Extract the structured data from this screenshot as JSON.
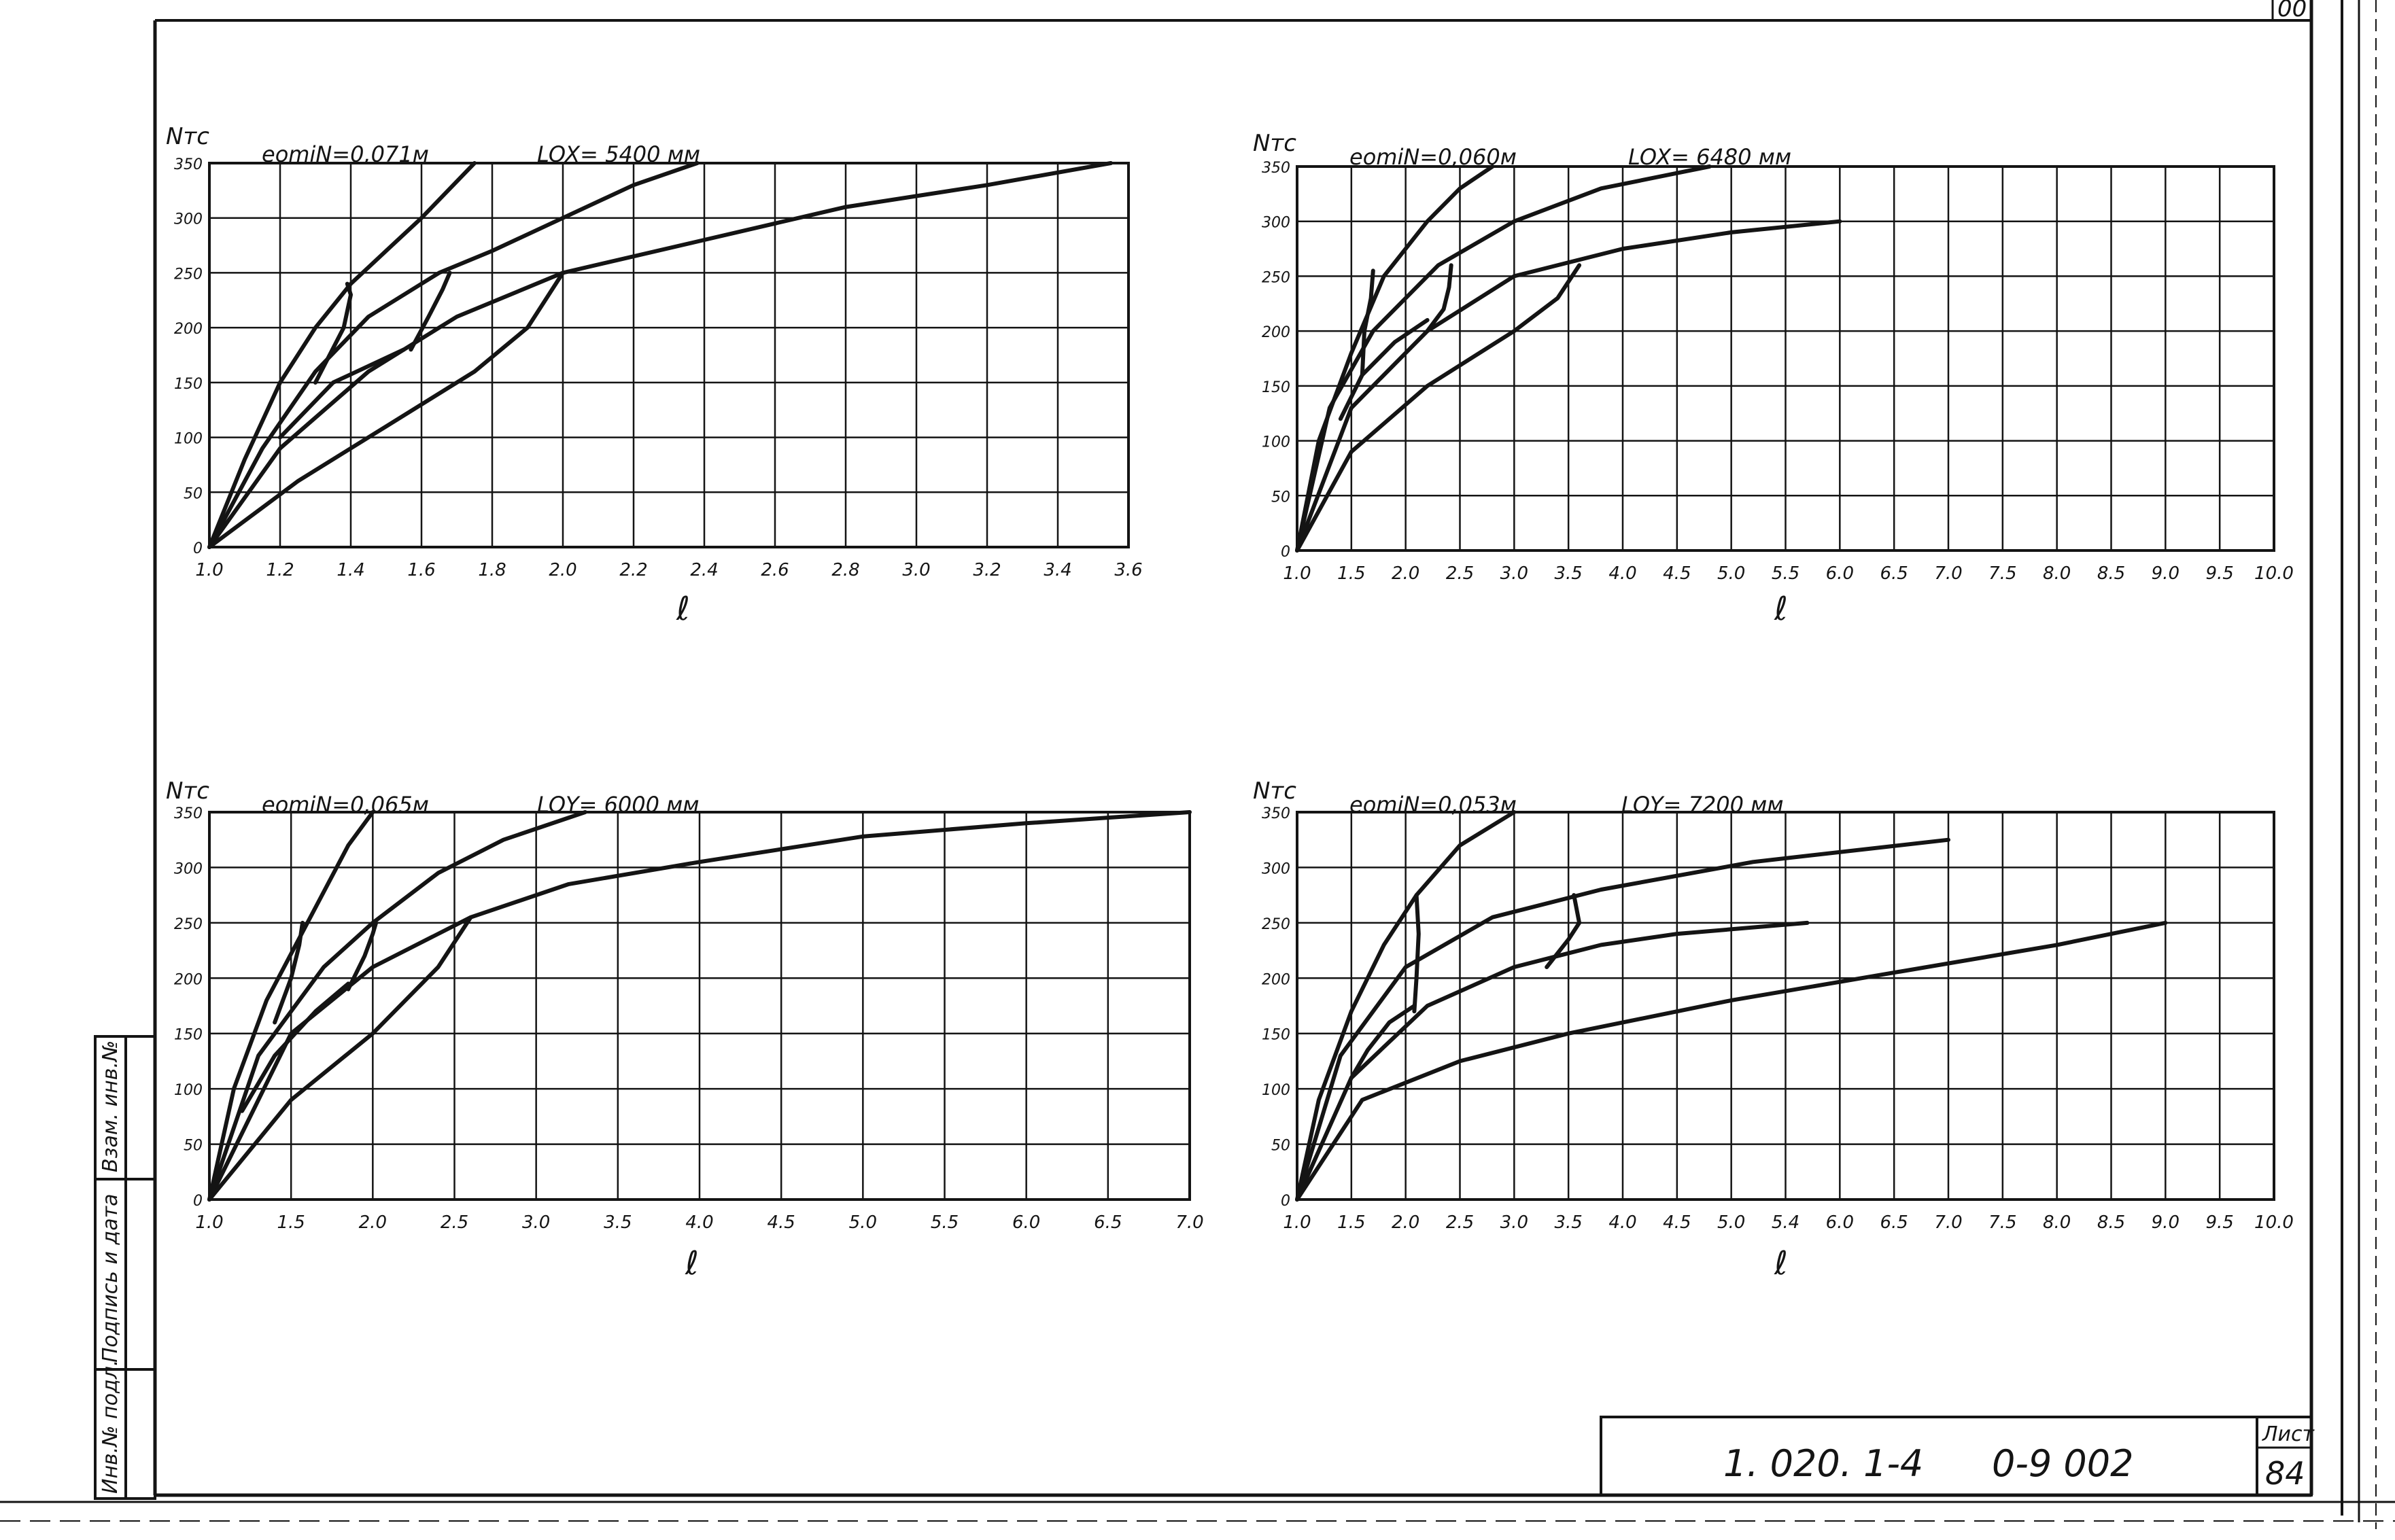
{
  "titleblock": {
    "designation": "1. 020. 1-4",
    "code": "0-9  002",
    "sheet_label": "Лист",
    "sheet_number": "84",
    "corner_fragment": "00"
  },
  "side_stamp": {
    "cells": [
      "Взам. инв.№",
      "Подпись и дата",
      "Инв.№ подл."
    ]
  },
  "chart_data": [
    {
      "type": "line",
      "title_emin": "eomiN=0,071м",
      "title_length": "LOX= 5400 мм",
      "ylabel": "Nтс",
      "xlabel": "ℓ",
      "xlim": [
        1.0,
        3.6
      ],
      "ylim": [
        0,
        350
      ],
      "x_ticks": [
        "1.0",
        "1.2",
        "1.4",
        "1.6",
        "1.8",
        "2.0",
        "2.2",
        "2.4",
        "2.6",
        "2.8",
        "3.0",
        "3.2",
        "3.4",
        "3.6"
      ],
      "y_ticks": [
        "0",
        "50",
        "100",
        "150",
        "200",
        "250",
        "300",
        "350"
      ],
      "grid": true,
      "series": [
        {
          "x": [
            1.0,
            1.1,
            1.2,
            1.3,
            1.4,
            1.5,
            1.6,
            1.75
          ],
          "y": [
            0,
            80,
            150,
            200,
            240,
            270,
            300,
            350
          ]
        },
        {
          "x": [
            1.0,
            1.15,
            1.3,
            1.45,
            1.65,
            1.8,
            2.0,
            2.2,
            2.38
          ],
          "y": [
            0,
            90,
            160,
            210,
            250,
            270,
            300,
            330,
            350
          ]
        },
        {
          "x": [
            1.0,
            1.2,
            1.45,
            1.7,
            2.0,
            2.4,
            2.8,
            3.2,
            3.55
          ],
          "y": [
            0,
            90,
            160,
            210,
            250,
            280,
            310,
            330,
            350
          ]
        },
        {
          "x": [
            1.0,
            1.25,
            1.5,
            1.75,
            1.9,
            2.0
          ],
          "y": [
            0,
            60,
            110,
            160,
            200,
            250
          ]
        },
        {
          "x": [
            1.3,
            1.38,
            1.4,
            1.39
          ],
          "y": [
            150,
            200,
            230,
            240
          ]
        },
        {
          "x": [
            1.57,
            1.62,
            1.66,
            1.68
          ],
          "y": [
            180,
            210,
            235,
            250
          ]
        },
        {
          "x": [
            1.2,
            1.35,
            1.55
          ],
          "y": [
            100,
            150,
            180
          ]
        }
      ]
    },
    {
      "type": "line",
      "title_emin": "eomiN=0,060м",
      "title_length": "LOX= 6480 мм",
      "ylabel": "Nтс",
      "xlabel": "ℓ",
      "xlim": [
        1.0,
        10.0
      ],
      "ylim": [
        0,
        350
      ],
      "x_ticks": [
        "1.0",
        "1.5",
        "2.0",
        "2.5",
        "3.0",
        "3.5",
        "4.0",
        "4.5",
        "5.0",
        "5.5",
        "6.0",
        "6.5",
        "7.0",
        "7.5",
        "8.0",
        "8.5",
        "9.0",
        "9.5",
        "10.0"
      ],
      "y_ticks": [
        "0",
        "50",
        "100",
        "150",
        "200",
        "250",
        "300",
        "350"
      ],
      "grid": true,
      "series": [
        {
          "x": [
            1.0,
            1.2,
            1.5,
            1.8,
            2.2,
            2.5,
            2.8
          ],
          "y": [
            0,
            100,
            180,
            250,
            300,
            330,
            350
          ]
        },
        {
          "x": [
            1.0,
            1.3,
            1.7,
            2.3,
            3.0,
            3.8,
            4.8
          ],
          "y": [
            0,
            130,
            200,
            260,
            300,
            330,
            350
          ]
        },
        {
          "x": [
            1.0,
            1.5,
            2.2,
            3.0,
            4.0,
            5.0,
            6.0
          ],
          "y": [
            0,
            130,
            200,
            250,
            275,
            290,
            300
          ]
        },
        {
          "x": [
            1.0,
            1.5,
            2.2,
            3.0,
            3.4,
            3.6
          ],
          "y": [
            0,
            90,
            150,
            200,
            230,
            260
          ]
        },
        {
          "x": [
            1.6,
            1.62,
            1.68,
            1.7
          ],
          "y": [
            160,
            200,
            230,
            255
          ]
        },
        {
          "x": [
            2.2,
            2.35,
            2.4,
            2.42
          ],
          "y": [
            200,
            220,
            240,
            260
          ]
        },
        {
          "x": [
            1.4,
            1.6,
            1.9,
            2.2
          ],
          "y": [
            120,
            160,
            190,
            210
          ]
        }
      ]
    },
    {
      "type": "line",
      "title_emin": "eomiN=0,065м",
      "title_length": "LOY= 6000 мм",
      "ylabel": "Nтс",
      "xlabel": "ℓ",
      "xlim": [
        1.0,
        7.0
      ],
      "ylim": [
        0,
        350
      ],
      "x_ticks": [
        "1.0",
        "1.5",
        "2.0",
        "2.5",
        "3.0",
        "3.5",
        "4.0",
        "4.5",
        "5.0",
        "5.5",
        "6.0",
        "6.5",
        "7.0"
      ],
      "y_ticks": [
        "0",
        "50",
        "100",
        "150",
        "200",
        "250",
        "300",
        "350"
      ],
      "grid": true,
      "series": [
        {
          "x": [
            1.0,
            1.15,
            1.35,
            1.6,
            1.85,
            2.0
          ],
          "y": [
            0,
            100,
            180,
            250,
            320,
            350
          ]
        },
        {
          "x": [
            1.0,
            1.3,
            1.7,
            2.0,
            2.4,
            2.8,
            3.3
          ],
          "y": [
            0,
            130,
            210,
            250,
            295,
            325,
            350
          ]
        },
        {
          "x": [
            1.0,
            1.5,
            2.0,
            2.6,
            3.2,
            4.0,
            5.0,
            6.0,
            7.0
          ],
          "y": [
            0,
            150,
            210,
            255,
            285,
            305,
            328,
            340,
            350
          ]
        },
        {
          "x": [
            1.0,
            1.5,
            2.0,
            2.4,
            2.6
          ],
          "y": [
            0,
            90,
            150,
            210,
            255
          ]
        },
        {
          "x": [
            1.4,
            1.5,
            1.55,
            1.57
          ],
          "y": [
            160,
            200,
            230,
            250
          ]
        },
        {
          "x": [
            1.85,
            1.95,
            2.0,
            2.02
          ],
          "y": [
            190,
            220,
            240,
            250
          ]
        },
        {
          "x": [
            1.2,
            1.4,
            1.65,
            1.85
          ],
          "y": [
            80,
            130,
            170,
            195
          ]
        }
      ]
    },
    {
      "type": "line",
      "title_emin": "eomiN=0,053м",
      "title_length": "LOY= 7200 мм",
      "ylabel": "Nтс",
      "xlabel": "ℓ",
      "xlim": [
        1.0,
        10.0
      ],
      "ylim": [
        0,
        350
      ],
      "x_ticks": [
        "1.0",
        "1.5",
        "2.0",
        "2.5",
        "3.0",
        "3.5",
        "4.0",
        "4.5",
        "5.0",
        "5.4",
        "6.0",
        "6.5",
        "7.0",
        "7.5",
        "8.0",
        "8.5",
        "9.0",
        "9.5",
        "10.0"
      ],
      "y_ticks": [
        "0",
        "50",
        "100",
        "150",
        "200",
        "250",
        "300",
        "350"
      ],
      "grid": true,
      "series": [
        {
          "x": [
            1.0,
            1.2,
            1.5,
            1.8,
            2.1,
            2.5,
            3.0
          ],
          "y": [
            0,
            90,
            170,
            230,
            275,
            320,
            350
          ]
        },
        {
          "x": [
            1.0,
            1.4,
            2.0,
            2.8,
            3.8,
            5.2,
            7.0
          ],
          "y": [
            0,
            130,
            210,
            255,
            280,
            305,
            325
          ]
        },
        {
          "x": [
            1.0,
            1.5,
            2.2,
            3.0,
            3.8,
            4.5,
            5.7
          ],
          "y": [
            0,
            110,
            175,
            210,
            230,
            240,
            250
          ]
        },
        {
          "x": [
            1.0,
            1.6,
            2.5,
            3.5,
            5.0,
            6.5,
            8.0,
            9.0
          ],
          "y": [
            0,
            90,
            125,
            150,
            180,
            205,
            230,
            250
          ]
        },
        {
          "x": [
            2.08,
            2.1,
            2.12,
            2.1
          ],
          "y": [
            170,
            200,
            240,
            275
          ]
        },
        {
          "x": [
            3.3,
            3.5,
            3.6,
            3.55
          ],
          "y": [
            210,
            235,
            250,
            275
          ]
        },
        {
          "x": [
            1.5,
            1.65,
            1.85,
            2.08
          ],
          "y": [
            110,
            135,
            160,
            175
          ]
        }
      ]
    }
  ]
}
